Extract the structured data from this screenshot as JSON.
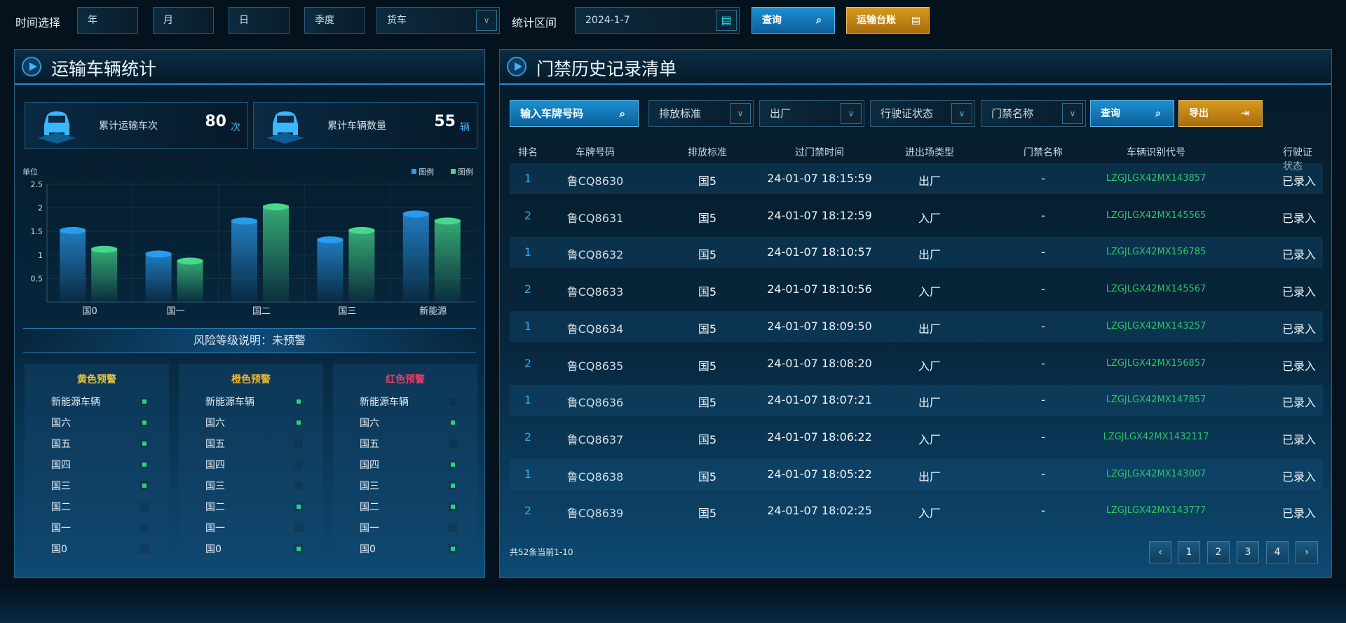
{
  "topbar": {
    "time_label": "时间选择",
    "year": "年",
    "month": "月",
    "day": "日",
    "quarter": "季度",
    "vehicle_type": "货车",
    "range_label": "统计区间",
    "date": "2024-1-7",
    "query": "查询",
    "ledger": "运输台账"
  },
  "left": {
    "title": "运输车辆统计",
    "stats": [
      {
        "label": "累计运输车次",
        "value": "80",
        "unit": "次"
      },
      {
        "label": "累计车辆数量",
        "value": "55",
        "unit": "辆"
      }
    ],
    "risk_label": "风险等级说明：未预警",
    "risk_cards": [
      {
        "title": "黄色预警",
        "color": "#e9c53b",
        "items": [
          "新能源车辆",
          "国六",
          "国五",
          "国四",
          "国三",
          "国二",
          "国一",
          "国0"
        ],
        "checked": [
          true,
          true,
          true,
          true,
          true,
          false,
          false,
          false
        ]
      },
      {
        "title": "橙色预警",
        "color": "#f0b52a",
        "items": [
          "新能源车辆",
          "国六",
          "国五",
          "国四",
          "国三",
          "国二",
          "国一",
          "国0"
        ],
        "checked": [
          true,
          true,
          false,
          false,
          false,
          true,
          false,
          true
        ]
      },
      {
        "title": "红色预警",
        "color": "#ef3b63",
        "items": [
          "新能源车辆",
          "国六",
          "国五",
          "国四",
          "国三",
          "国二",
          "国一",
          "国0"
        ],
        "checked": [
          false,
          true,
          false,
          true,
          true,
          true,
          false,
          true
        ]
      }
    ]
  },
  "chart_data": {
    "type": "bar",
    "ylabel": "单位",
    "categories": [
      "国0",
      "国一",
      "国二",
      "国三",
      "新能源"
    ],
    "yticks": [
      "0.5",
      "1",
      "1.5",
      "2",
      "2.5"
    ],
    "ylim": [
      0,
      2.5
    ],
    "grid": true,
    "legend_placement": "top-right",
    "series": [
      {
        "name": "图例",
        "color": "#2a9cf0",
        "values": [
          1.55,
          1.05,
          1.75,
          1.35,
          1.9
        ]
      },
      {
        "name": "图例",
        "color": "#46d98a",
        "values": [
          1.15,
          0.9,
          2.05,
          1.55,
          1.75
        ]
      }
    ]
  },
  "right": {
    "title": "门禁历史记录清单",
    "filters": {
      "plate_placeholder": "输入车牌号码",
      "emission": "排放标准",
      "direction": "出厂",
      "license": "行驶证状态",
      "gate": "门禁名称",
      "query": "查询",
      "export": "导出"
    },
    "columns": [
      "排名",
      "车牌号码",
      "排放标准",
      "过门禁时间",
      "进出场类型",
      "门禁名称",
      "车辆识别代号",
      "行驶证状态"
    ],
    "rows": [
      [
        "1",
        "鲁CQ8630",
        "国5",
        "24-01-07 18:15:59",
        "出厂",
        "-",
        "LZGJLGX42MX143857",
        "已录入"
      ],
      [
        "2",
        "鲁CQ8631",
        "国5",
        "24-01-07 18:12:59",
        "入厂",
        "-",
        "LZGJLGX42MX145565",
        "已录入"
      ],
      [
        "1",
        "鲁CQ8632",
        "国5",
        "24-01-07 18:10:57",
        "出厂",
        "-",
        "LZGJLGX42MX156785",
        "已录入"
      ],
      [
        "2",
        "鲁CQ8633",
        "国5",
        "24-01-07 18:10:56",
        "入厂",
        "-",
        "LZGJLGX42MX145567",
        "已录入"
      ],
      [
        "1",
        "鲁CQ8634",
        "国5",
        "24-01-07 18:09:50",
        "出厂",
        "-",
        "LZGJLGX42MX143257",
        "已录入"
      ],
      [
        "2",
        "鲁CQ8635",
        "国5",
        "24-01-07 18:08:20",
        "入厂",
        "-",
        "LZGJLGX42MX156857",
        "已录入"
      ],
      [
        "1",
        "鲁CQ8636",
        "国5",
        "24-01-07 18:07:21",
        "出厂",
        "-",
        "LZGJLGX42MX147857",
        "已录入"
      ],
      [
        "2",
        "鲁CQ8637",
        "国5",
        "24-01-07 18:06:22",
        "入厂",
        "-",
        "LZGJLGX42MX1432117",
        "已录入"
      ],
      [
        "1",
        "鲁CQ8638",
        "国5",
        "24-01-07 18:05:22",
        "出厂",
        "-",
        "LZGJLGX42MX143007",
        "已录入"
      ],
      [
        "2",
        "鲁CQ8639",
        "国5",
        "24-01-07 18:02:25",
        "入厂",
        "-",
        "LZGJLGX42MX143777",
        "已录入"
      ]
    ],
    "summary": "共52条当前1-10",
    "pages": [
      "1",
      "2",
      "3",
      "4"
    ],
    "prev": "‹",
    "next": "›"
  }
}
